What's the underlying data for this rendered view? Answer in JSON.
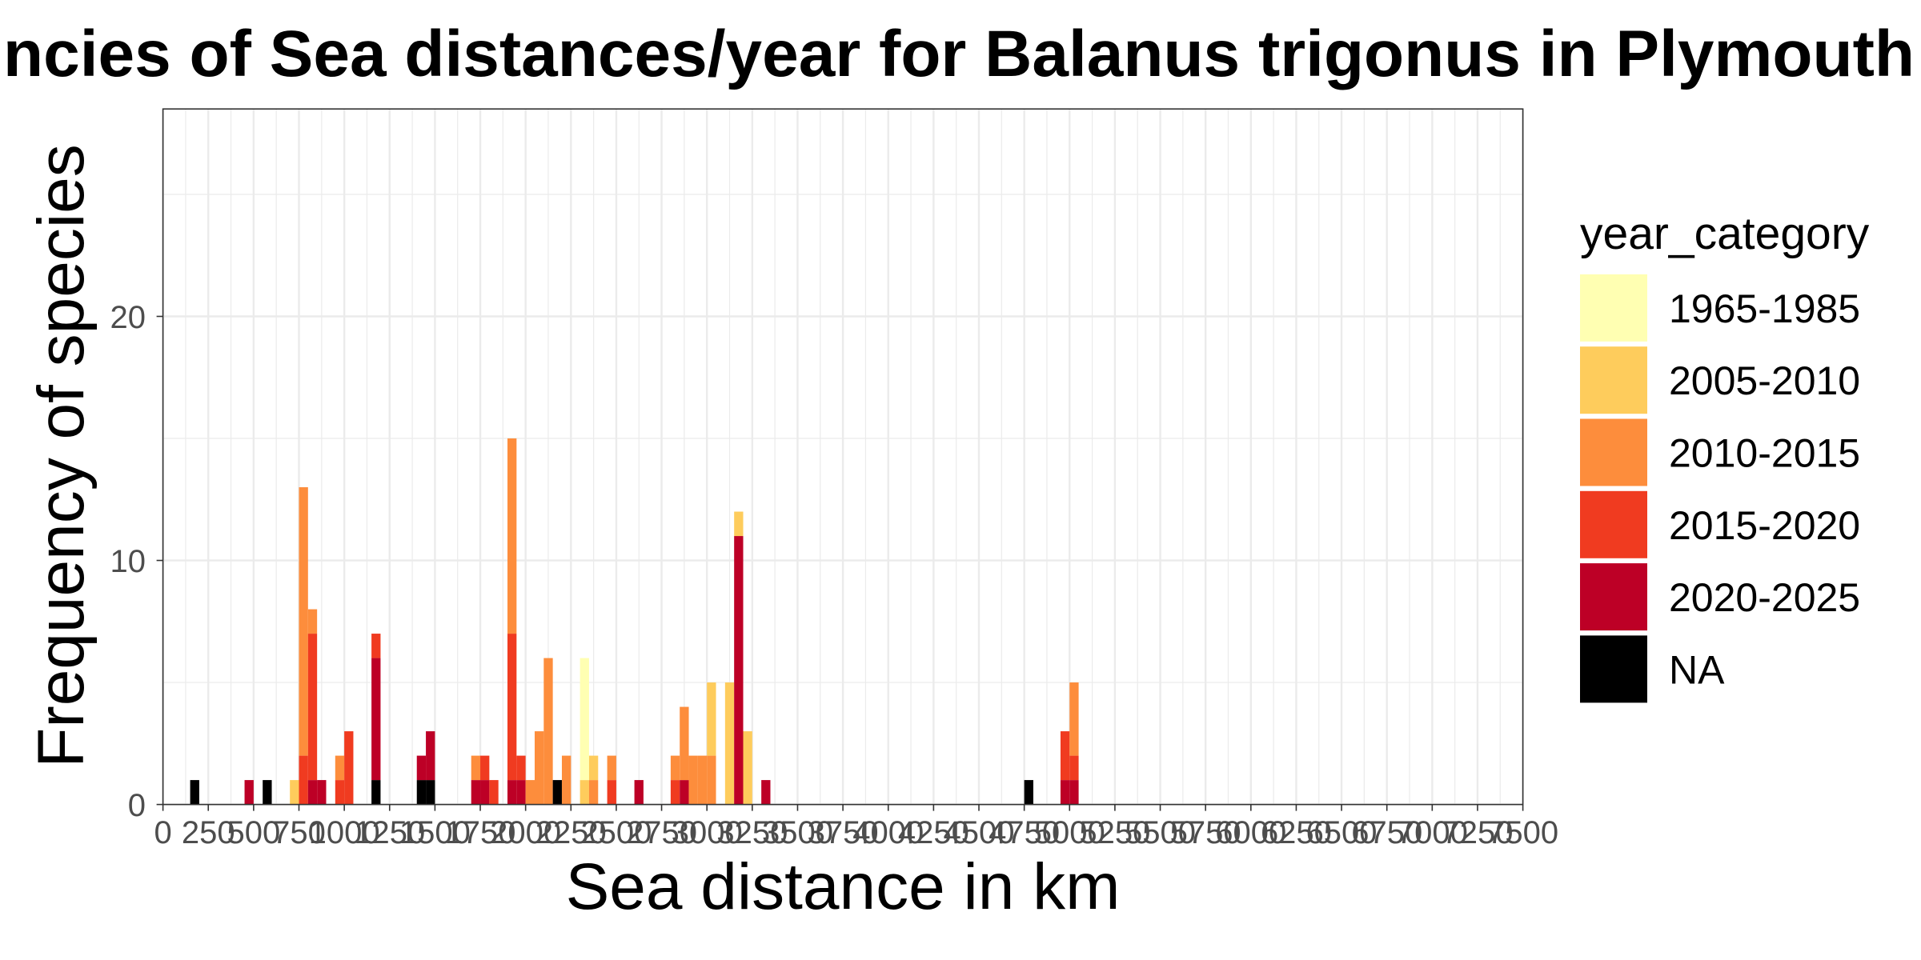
{
  "chart_data": {
    "type": "bar",
    "stacked": true,
    "title": "ncies of Sea distances/year for Balanus trigonus in Plymouth",
    "xlabel": "Sea distance in km",
    "ylabel": "Frequency of species",
    "xlim": [
      0,
      7500
    ],
    "ylim": [
      0,
      28.5
    ],
    "x_ticks": [
      0,
      250,
      500,
      750,
      1000,
      1250,
      1500,
      1750,
      2000,
      2250,
      2500,
      2750,
      3000,
      3250,
      3500,
      3750,
      4000,
      4250,
      4500,
      4750,
      5000,
      5250,
      5500,
      5750,
      6000,
      6250,
      6500,
      6750,
      7000,
      7250,
      7500
    ],
    "y_ticks": [
      0,
      10,
      20
    ],
    "grid": true,
    "legend_title": "year_category",
    "legend_position": "right",
    "bin_width": 50,
    "x": [
      175,
      475,
      575,
      725,
      775,
      825,
      875,
      975,
      1025,
      1175,
      1425,
      1475,
      1725,
      1775,
      1825,
      1925,
      1975,
      2025,
      2075,
      2125,
      2175,
      2225,
      2325,
      2375,
      2475,
      2625,
      2825,
      2875,
      2925,
      2975,
      3025,
      3125,
      3175,
      3225,
      3325,
      4775,
      4975,
      5025
    ],
    "series": [
      {
        "name": "1965-1985",
        "color": "#FFFFB2",
        "values": [
          0,
          0,
          0,
          0,
          0,
          0,
          0,
          0,
          0,
          0,
          0,
          0,
          0,
          0,
          0,
          0,
          0,
          0,
          0,
          0,
          0,
          0,
          5,
          0,
          0,
          0,
          0,
          0,
          0,
          0,
          0,
          0,
          0,
          0,
          0,
          0,
          0,
          0
        ]
      },
      {
        "name": "2005-2010",
        "color": "#FECC5C",
        "values": [
          0,
          0,
          0,
          1,
          0,
          0,
          0,
          0,
          0,
          0,
          0,
          0,
          0,
          0,
          0,
          0,
          0,
          0,
          0,
          0,
          0,
          0,
          1,
          1,
          0,
          0,
          0,
          0,
          0,
          0,
          3,
          5,
          1,
          3,
          0,
          0,
          0,
          0
        ]
      },
      {
        "name": "2010-2015",
        "color": "#FD8D3C",
        "values": [
          0,
          0,
          0,
          0,
          11,
          1,
          0,
          1,
          0,
          0,
          0,
          0,
          1,
          0,
          0,
          8,
          0,
          1,
          3,
          6,
          0,
          2,
          0,
          1,
          1,
          0,
          1,
          3,
          2,
          2,
          2,
          0,
          0,
          0,
          0,
          0,
          0,
          3
        ]
      },
      {
        "name": "2015-2020",
        "color": "#F03B20",
        "values": [
          0,
          0,
          0,
          0,
          2,
          6,
          0,
          1,
          3,
          1,
          0,
          0,
          0,
          1,
          1,
          6,
          1,
          0,
          0,
          0,
          0,
          0,
          0,
          0,
          1,
          0,
          1,
          0,
          0,
          0,
          0,
          0,
          0,
          0,
          0,
          0,
          2,
          1
        ]
      },
      {
        "name": "2020-2025",
        "color": "#BD0026",
        "values": [
          0,
          1,
          0,
          0,
          0,
          1,
          1,
          0,
          0,
          5,
          1,
          2,
          1,
          1,
          0,
          1,
          1,
          0,
          0,
          0,
          0,
          0,
          0,
          0,
          0,
          1,
          0,
          1,
          0,
          0,
          0,
          0,
          11,
          0,
          1,
          0,
          1,
          1
        ]
      },
      {
        "name": "NA",
        "color": "#000000",
        "values": [
          1,
          0,
          1,
          0,
          0,
          0,
          0,
          0,
          0,
          1,
          1,
          1,
          0,
          0,
          0,
          0,
          0,
          0,
          0,
          0,
          1,
          0,
          0,
          0,
          0,
          0,
          0,
          0,
          0,
          0,
          0,
          0,
          0,
          0,
          0,
          1,
          0,
          0
        ]
      }
    ]
  }
}
